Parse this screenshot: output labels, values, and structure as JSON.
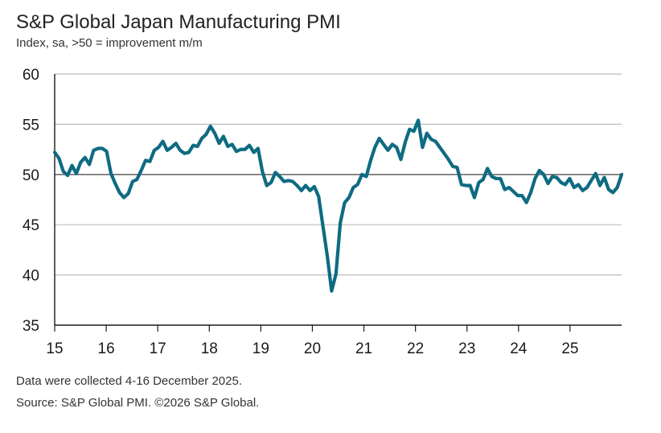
{
  "title": "S&P Global Japan Manufacturing PMI",
  "subtitle": "Index, sa, >50 = improvement m/m",
  "footnote_1": "Data were collected 4-16 December 2025.",
  "footnote_2": "Source: S&P Global PMI. ©2026 S&P Global.",
  "colors": {
    "line": "#0e6b82",
    "grid": "#bdbdbd",
    "axis": "#1a1a1a"
  },
  "chart_data": {
    "type": "line",
    "title": "S&P Global Japan Manufacturing PMI",
    "xlabel": "",
    "ylabel": "Index, sa, >50 = improvement m/m",
    "ylim": [
      35,
      60
    ],
    "xlim": [
      2015.0,
      2026.0
    ],
    "y_ticks": [
      "60",
      "55",
      "50",
      "45",
      "40",
      "35"
    ],
    "x_tick_labels": [
      "15",
      "16",
      "17",
      "18",
      "19",
      "20",
      "21",
      "22",
      "23",
      "24",
      "25"
    ],
    "grid": true,
    "series": [
      {
        "name": "Japan Manufacturing PMI",
        "values": [
          52.2,
          51.6,
          50.3,
          49.9,
          50.9,
          50.1,
          51.2,
          51.7,
          51.0,
          52.4,
          52.6,
          52.6,
          52.3,
          50.1,
          49.1,
          48.2,
          47.7,
          48.1,
          49.3,
          49.5,
          50.4,
          51.4,
          51.3,
          52.4,
          52.7,
          53.3,
          52.4,
          52.7,
          53.1,
          52.4,
          52.1,
          52.2,
          52.9,
          52.8,
          53.6,
          54.0,
          54.8,
          54.1,
          53.1,
          53.8,
          52.8,
          53.0,
          52.3,
          52.5,
          52.5,
          52.9,
          52.2,
          52.6,
          50.3,
          48.9,
          49.2,
          50.2,
          49.8,
          49.3,
          49.4,
          49.3,
          48.9,
          48.4,
          48.9,
          48.4,
          48.8,
          47.8,
          44.8,
          41.9,
          38.4,
          40.1,
          45.2,
          47.2,
          47.7,
          48.7,
          49.0,
          50.0,
          49.8,
          51.4,
          52.7,
          53.6,
          53.0,
          52.4,
          53.0,
          52.7,
          51.5,
          53.2,
          54.5,
          54.3,
          55.4,
          52.7,
          54.1,
          53.5,
          53.3,
          52.7,
          52.1,
          51.5,
          50.8,
          50.7,
          49.0,
          48.9,
          48.9,
          47.7,
          49.2,
          49.5,
          50.6,
          49.8,
          49.6,
          49.6,
          48.5,
          48.7,
          48.3,
          47.9,
          47.9,
          47.2,
          48.2,
          49.6,
          50.4,
          50.0,
          49.1,
          49.8,
          49.7,
          49.2,
          49.0,
          49.6,
          48.7,
          49.0,
          48.4,
          48.7,
          49.4,
          50.1,
          48.9,
          49.7,
          48.5,
          48.2,
          48.7,
          50.0
        ]
      }
    ]
  }
}
